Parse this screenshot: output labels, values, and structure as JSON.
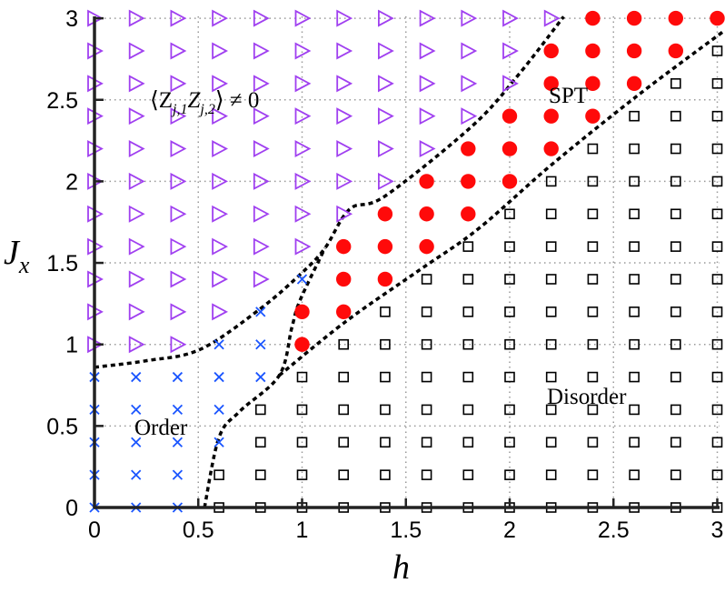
{
  "chart_data": {
    "type": "scatter",
    "title": "",
    "xlabel": "h",
    "ylabel": "J",
    "ylabel_subscript": "x",
    "xlim": [
      0,
      3
    ],
    "ylim": [
      0,
      3
    ],
    "grid": true,
    "xticks": [
      "0",
      "0.5",
      "1",
      "1.5",
      "2",
      "2.5",
      "3"
    ],
    "yticks": [
      "0",
      "0.5",
      "1",
      "1.5",
      "2",
      "2.5",
      "3"
    ],
    "grid_x": [
      0,
      0.2,
      0.4,
      0.6,
      0.8,
      1.0,
      1.2,
      1.4,
      1.6,
      1.8,
      2.0,
      2.2,
      2.4,
      2.6,
      2.8,
      3.0
    ],
    "grid_y_top_to_bottom": [
      3.0,
      2.8,
      2.6,
      2.4,
      2.2,
      2.0,
      1.8,
      1.6,
      1.4,
      1.2,
      1.0,
      0.8,
      0.6,
      0.4,
      0.2,
      0.0
    ],
    "marker_key": {
      "T": {
        "shape": "triangle-right-open",
        "color": "#a040f0"
      },
      "R": {
        "shape": "circle-filled",
        "color": "#ff0a0a"
      },
      "X": {
        "shape": "cross",
        "color": "#1a55ff"
      },
      "S": {
        "shape": "square-open",
        "color": "#000000"
      }
    },
    "phase_rows": [
      "TTTTTTTTTTTTRRRR",
      "TTTTTTTTTTTRRRRS",
      "TTTTTTTTTTTRRRSS",
      "TTTTTTTTTTRRRSSS",
      "TTTTTTTTTRRRSSSS",
      "TTTTTTTTRRRSSSSS",
      "TTTTTTTRRRSSSSSS",
      "TTTTTTRRRSSSSSSS",
      "TTTTTXRRSSSSSSSS",
      "TTTTXRRSSSSSSSSS",
      "TTTXXRSSSSSSSSSS",
      "XXXXXSSSSSSSSSSS",
      "XXXXSSSSSSSSSSSS",
      "XXXXSSSSSSSSSSSS",
      "XXXSSSSSSSSSSSSS",
      "XXXSSSSSSSSSSSSS"
    ],
    "boundaries": [
      {
        "points": [
          [
            0,
            0.86
          ],
          [
            0.25,
            0.9
          ],
          [
            0.51,
            0.97
          ],
          [
            0.8,
            1.22
          ],
          [
            1.0,
            1.44
          ],
          [
            1.11,
            1.59
          ],
          [
            1.23,
            1.83
          ],
          [
            1.4,
            1.91
          ],
          [
            1.82,
            2.34
          ],
          [
            2.04,
            2.65
          ],
          [
            2.26,
            3.01
          ]
        ]
      },
      {
        "points": [
          [
            0.53,
            0
          ],
          [
            0.6,
            0.43
          ],
          [
            0.7,
            0.59
          ],
          [
            0.89,
            0.81
          ],
          [
            0.95,
            1.1
          ],
          [
            0.99,
            1.27
          ],
          [
            1.11,
            1.59
          ]
        ]
      },
      {
        "points": [
          [
            0.89,
            0.81
          ],
          [
            1.21,
            1.14
          ],
          [
            1.57,
            1.46
          ],
          [
            1.85,
            1.71
          ],
          [
            2.2,
            2.1
          ],
          [
            2.62,
            2.53
          ],
          [
            3.03,
            2.92
          ]
        ]
      }
    ],
    "annotations": {
      "order_param": "⟨Z",
      "order_param_sub1": "j,1",
      "order_param_mid": "Z",
      "order_param_sub2": "j,2",
      "order_param_end": "⟩ ≠ 0",
      "spt": "SPT",
      "disorder": "Disorder",
      "order": "Order"
    }
  }
}
